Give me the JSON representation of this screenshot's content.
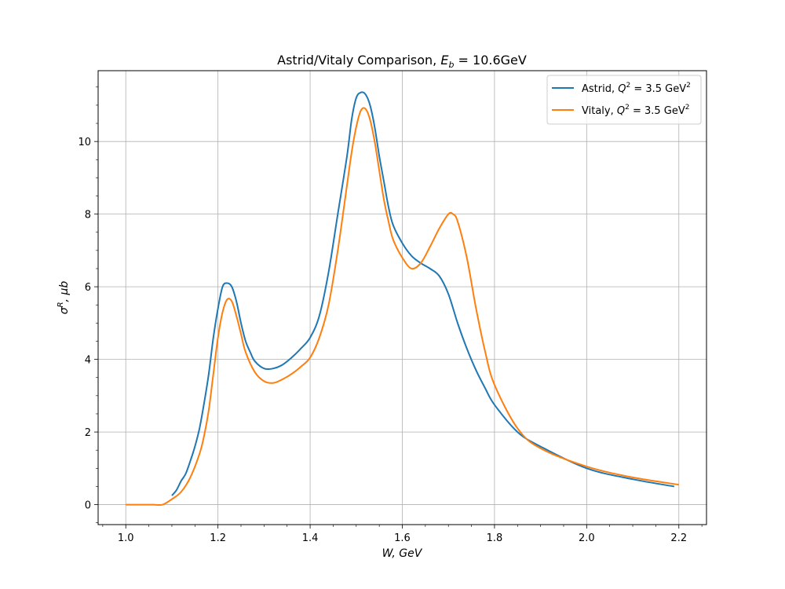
{
  "chart_data": {
    "type": "line",
    "title_prefix": "Astrid/Vitaly Comparison, ",
    "title_math_var": "E",
    "title_math_sub": "b",
    "title_math_rest": " = 10.6GeV",
    "xlabel": "W, GeV",
    "ylabel_sym": "σ",
    "ylabel_sup": "R",
    "ylabel_rest": ", μb",
    "xlim": [
      0.94,
      2.26
    ],
    "ylim": [
      -0.55,
      11.95
    ],
    "xticks": [
      "1.0",
      "1.2",
      "1.4",
      "1.6",
      "1.8",
      "2.0",
      "2.2"
    ],
    "yticks": [
      "0",
      "2",
      "4",
      "6",
      "8",
      "10"
    ],
    "grid": true,
    "legend_position": "top-right",
    "series": [
      {
        "name_prefix": "Astrid, ",
        "name_math": "Q",
        "name_sup": "2",
        "name_rest": " = 3.5 GeV",
        "name_unit_sup": "2",
        "color": "#1f77b4",
        "x": [
          1.1,
          1.11,
          1.12,
          1.13,
          1.14,
          1.15,
          1.16,
          1.17,
          1.18,
          1.19,
          1.2,
          1.21,
          1.22,
          1.23,
          1.24,
          1.25,
          1.26,
          1.27,
          1.28,
          1.3,
          1.32,
          1.34,
          1.36,
          1.38,
          1.4,
          1.42,
          1.44,
          1.46,
          1.48,
          1.49,
          1.5,
          1.51,
          1.52,
          1.53,
          1.54,
          1.55,
          1.56,
          1.57,
          1.58,
          1.6,
          1.62,
          1.64,
          1.66,
          1.68,
          1.7,
          1.72,
          1.74,
          1.76,
          1.78,
          1.8,
          1.85,
          1.9,
          2.0,
          2.1,
          2.19
        ],
        "y": [
          0.25,
          0.4,
          0.65,
          0.85,
          1.2,
          1.6,
          2.1,
          2.8,
          3.6,
          4.6,
          5.4,
          6.0,
          6.1,
          6.0,
          5.6,
          5.0,
          4.5,
          4.2,
          3.95,
          3.75,
          3.75,
          3.85,
          4.05,
          4.3,
          4.6,
          5.2,
          6.4,
          8.0,
          9.6,
          10.6,
          11.2,
          11.35,
          11.3,
          11.0,
          10.4,
          9.6,
          8.9,
          8.2,
          7.7,
          7.2,
          6.85,
          6.65,
          6.5,
          6.3,
          5.8,
          5.0,
          4.3,
          3.7,
          3.2,
          2.75,
          2.0,
          1.6,
          1.0,
          0.7,
          0.5
        ]
      },
      {
        "name_prefix": "Vitaly, ",
        "name_math": "Q",
        "name_sup": "2",
        "name_rest": " = 3.5 GeV",
        "name_unit_sup": "2",
        "color": "#ff7f0e",
        "x": [
          1.0,
          1.02,
          1.04,
          1.06,
          1.08,
          1.1,
          1.12,
          1.14,
          1.16,
          1.17,
          1.18,
          1.19,
          1.2,
          1.21,
          1.22,
          1.23,
          1.24,
          1.25,
          1.26,
          1.28,
          1.3,
          1.32,
          1.34,
          1.36,
          1.38,
          1.4,
          1.42,
          1.44,
          1.46,
          1.48,
          1.49,
          1.5,
          1.51,
          1.52,
          1.53,
          1.54,
          1.55,
          1.56,
          1.57,
          1.58,
          1.6,
          1.62,
          1.64,
          1.66,
          1.68,
          1.7,
          1.71,
          1.72,
          1.74,
          1.76,
          1.78,
          1.8,
          1.85,
          1.9,
          2.0,
          2.1,
          2.2
        ],
        "y": [
          0.0,
          0.0,
          0.0,
          0.0,
          0.0,
          0.15,
          0.35,
          0.75,
          1.4,
          1.9,
          2.6,
          3.6,
          4.6,
          5.3,
          5.65,
          5.6,
          5.2,
          4.7,
          4.2,
          3.65,
          3.4,
          3.35,
          3.45,
          3.6,
          3.8,
          4.05,
          4.6,
          5.5,
          7.0,
          8.8,
          9.7,
          10.4,
          10.85,
          10.9,
          10.6,
          10.0,
          9.2,
          8.4,
          7.8,
          7.3,
          6.8,
          6.5,
          6.65,
          7.1,
          7.6,
          8.0,
          8.0,
          7.8,
          6.8,
          5.4,
          4.2,
          3.3,
          2.1,
          1.55,
          1.05,
          0.75,
          0.55
        ]
      }
    ]
  }
}
